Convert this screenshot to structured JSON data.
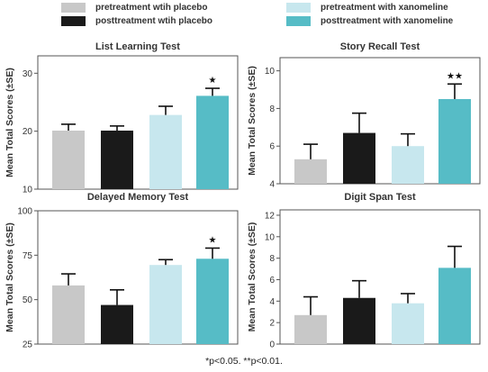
{
  "legend": [
    {
      "label": "pretreatment wtih placebo",
      "color": "#c8c8c8"
    },
    {
      "label": "posttreatment wtih placebo",
      "color": "#1a1a1a"
    },
    {
      "label": "pretreatment with xanomeline",
      "color": "#c7e7ee"
    },
    {
      "label": "posttreatment with xanomeline",
      "color": "#56bcc6"
    }
  ],
  "footnote": "*p<0.05. **p<0.01.",
  "chart_data": [
    {
      "type": "bar",
      "title": "List Learning Test",
      "ylabel": "Mean Total Scores (±SE)",
      "ylim": [
        10,
        33
      ],
      "yticks": [
        10,
        20,
        30
      ],
      "categories": [
        "pretreatment wtih placebo",
        "posttreatment wtih placebo",
        "pretreatment with xanomeline",
        "posttreatment with xanomeline"
      ],
      "values": [
        20.1,
        20.1,
        22.8,
        26.1
      ],
      "errors": [
        1.1,
        0.8,
        1.5,
        1.3
      ],
      "annotations": [
        "",
        "",
        "",
        "★"
      ]
    },
    {
      "type": "bar",
      "title": "Story Recall Test",
      "ylabel": "Mean Total Scores (±SE)",
      "ylim": [
        4,
        10.7
      ],
      "yticks": [
        4,
        6,
        8,
        10
      ],
      "categories": [
        "pretreatment wtih placebo",
        "posttreatment wtih placebo",
        "pretreatment with xanomeline",
        "posttreatment with xanomeline"
      ],
      "values": [
        5.3,
        6.7,
        6.0,
        8.5
      ],
      "errors": [
        0.8,
        1.05,
        0.65,
        0.8
      ],
      "annotations": [
        "",
        "",
        "",
        "★★"
      ]
    },
    {
      "type": "bar",
      "title": "Delayed Memory Test",
      "ylabel": "Mean Total Scores (±SE)",
      "ylim": [
        25,
        100
      ],
      "yticks": [
        25,
        50,
        75,
        100
      ],
      "categories": [
        "pretreatment wtih placebo",
        "posttreatment wtih placebo",
        "pretreatment with xanomeline",
        "posttreatment with xanomeline"
      ],
      "values": [
        58,
        47,
        69.5,
        73
      ],
      "errors": [
        6.5,
        8.5,
        3,
        6
      ],
      "annotations": [
        "",
        "",
        "",
        "★"
      ]
    },
    {
      "type": "bar",
      "title": "Digit Span Test",
      "ylabel": "Mean Total Scores (±SE)",
      "ylim": [
        0,
        12.5
      ],
      "yticks": [
        0,
        2,
        4,
        6,
        8,
        10,
        12
      ],
      "categories": [
        "pretreatment wtih placebo",
        "posttreatment wtih placebo",
        "pretreatment with xanomeline",
        "posttreatment with xanomeline"
      ],
      "values": [
        2.7,
        4.3,
        3.8,
        7.1
      ],
      "errors": [
        1.7,
        1.6,
        0.9,
        2.0
      ],
      "annotations": [
        "",
        "",
        "",
        ""
      ]
    }
  ]
}
